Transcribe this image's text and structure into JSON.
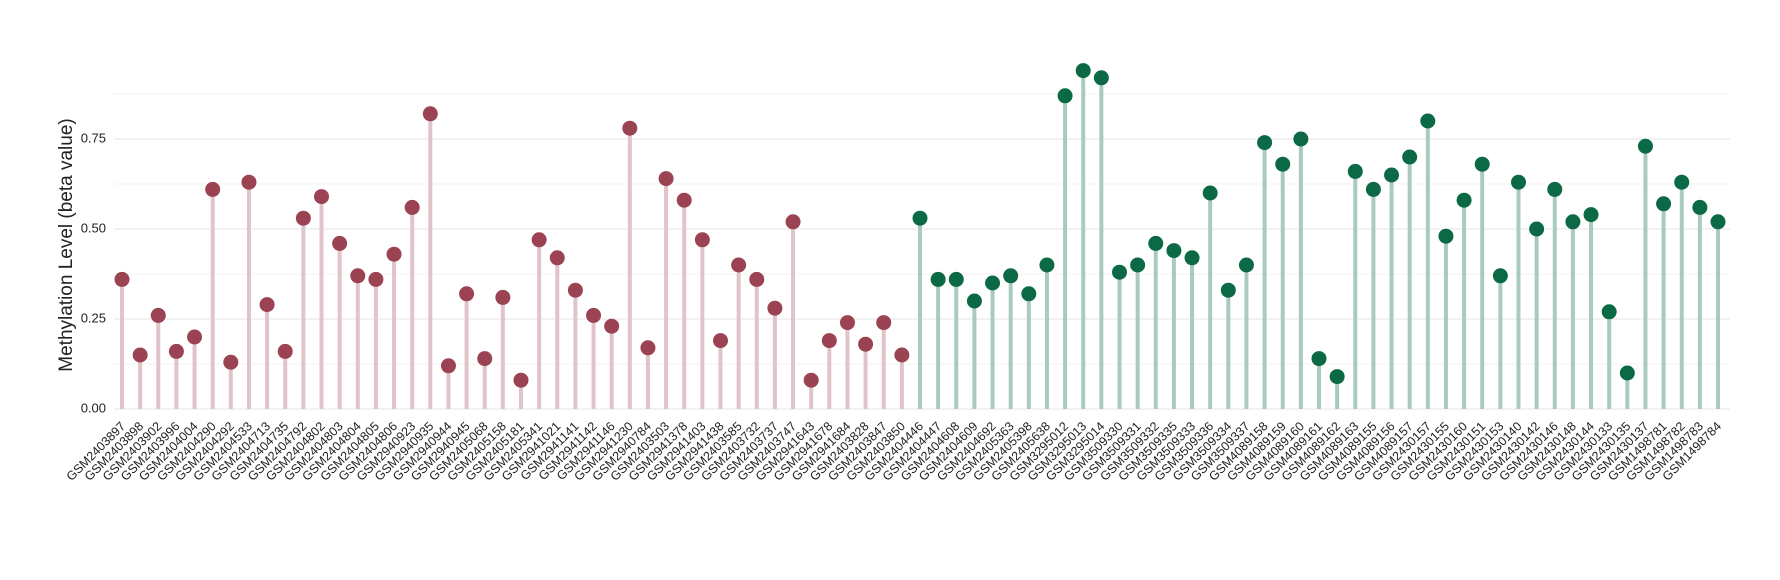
{
  "chart_data": {
    "type": "lollipop",
    "y_label": "Methylation Level (beta value)",
    "categories": [
      "GSM2403897",
      "GSM2403898",
      "GSM2403902",
      "GSM2403996",
      "GSM2404004",
      "GSM2404290",
      "GSM2404292",
      "GSM2404533",
      "GSM2404713",
      "GSM2404735",
      "GSM2404792",
      "GSM2404802",
      "GSM2404803",
      "GSM2404804",
      "GSM2404805",
      "GSM2404806",
      "GSM2940923",
      "GSM2940935",
      "GSM2940944",
      "GSM2940945",
      "GSM2405068",
      "GSM2405158",
      "GSM2405181",
      "GSM2405341",
      "GSM2941021",
      "GSM2941141",
      "GSM2941142",
      "GSM2941146",
      "GSM2941230",
      "GSM2940784",
      "GSM2403503",
      "GSM2941378",
      "GSM2941403",
      "GSM2941438",
      "GSM2403585",
      "GSM2403732",
      "GSM2403737",
      "GSM2403747",
      "GSM2941643",
      "GSM2941678",
      "GSM2941684",
      "GSM2403828",
      "GSM2403847",
      "GSM2403850",
      "GSM2404446",
      "GSM2404447",
      "GSM2404608",
      "GSM2404609",
      "GSM2404692",
      "GSM2405363",
      "GSM2405398",
      "GSM2405638",
      "GSM3295012",
      "GSM3295013",
      "GSM3295014",
      "GSM3509330",
      "GSM3509331",
      "GSM3509332",
      "GSM3509335",
      "GSM3509333",
      "GSM3509336",
      "GSM3509334",
      "GSM3509337",
      "GSM4089158",
      "GSM4089159",
      "GSM4089160",
      "GSM4089161",
      "GSM4089162",
      "GSM4089163",
      "GSM4089155",
      "GSM4089156",
      "GSM4089157",
      "GSM2430157",
      "GSM2430155",
      "GSM2430160",
      "GSM2430151",
      "GSM2430153",
      "GSM2430140",
      "GSM2430142",
      "GSM2430146",
      "GSM2430148",
      "GSM2430144",
      "GSM2430133",
      "GSM2430135",
      "GSM2430137",
      "GSM1498781",
      "GSM1498782",
      "GSM1498783",
      "GSM1498784"
    ],
    "series": [
      {
        "color": "#9b4352",
        "stem_color": "#e0c4ca",
        "values": [
          0.36,
          0.15,
          0.26,
          0.16,
          0.2,
          0.61,
          0.13,
          0.63,
          0.29,
          0.16,
          0.53,
          0.59,
          0.46,
          0.37,
          0.36,
          0.43,
          0.56,
          0.82,
          0.12,
          0.32,
          0.14,
          0.31,
          0.08,
          0.47,
          0.42,
          0.33,
          0.26,
          0.23,
          0.78,
          0.17,
          0.64,
          0.58,
          0.47,
          0.19,
          0.4,
          0.36,
          0.28,
          0.52,
          0.08,
          0.19,
          0.24,
          0.18,
          0.24,
          0.15,
          null,
          null,
          null,
          null,
          null,
          null,
          null,
          null,
          null,
          null,
          null,
          null,
          null,
          null,
          null,
          null,
          null,
          null,
          null,
          null,
          null,
          null,
          null,
          null,
          null,
          null,
          null,
          null,
          null,
          null,
          null,
          null,
          null,
          null,
          null,
          null,
          null,
          null,
          null,
          null,
          null,
          null,
          null,
          null,
          null
        ]
      },
      {
        "color": "#0b6a45",
        "stem_color": "#a9cbbe",
        "values": [
          null,
          null,
          null,
          null,
          null,
          null,
          null,
          null,
          null,
          null,
          null,
          null,
          null,
          null,
          null,
          null,
          null,
          null,
          null,
          null,
          null,
          null,
          null,
          null,
          null,
          null,
          null,
          null,
          null,
          null,
          null,
          null,
          null,
          null,
          null,
          null,
          null,
          null,
          null,
          null,
          null,
          null,
          null,
          null,
          0.53,
          0.36,
          0.36,
          0.3,
          0.35,
          0.37,
          0.32,
          0.4,
          0.87,
          0.94,
          0.92,
          0.38,
          0.4,
          0.46,
          0.44,
          0.42,
          0.6,
          0.33,
          0.4,
          0.74,
          0.68,
          0.75,
          0.14,
          0.09,
          0.66,
          0.61,
          0.65,
          0.7,
          0.8,
          0.48,
          0.58,
          0.68,
          0.37,
          0.63,
          0.5,
          0.61,
          0.52,
          0.54,
          0.27,
          0.1,
          0.73,
          0.57,
          0.63,
          0.56,
          0.52
        ]
      }
    ],
    "ylim": [
      0,
      1
    ],
    "yticks": [
      {
        "value": 0,
        "label": "0.00"
      },
      {
        "value": 0.25,
        "label": "0.25"
      },
      {
        "value": 0.5,
        "label": "0.50"
      },
      {
        "value": 0.75,
        "label": "0.75"
      }
    ],
    "grid": true
  }
}
